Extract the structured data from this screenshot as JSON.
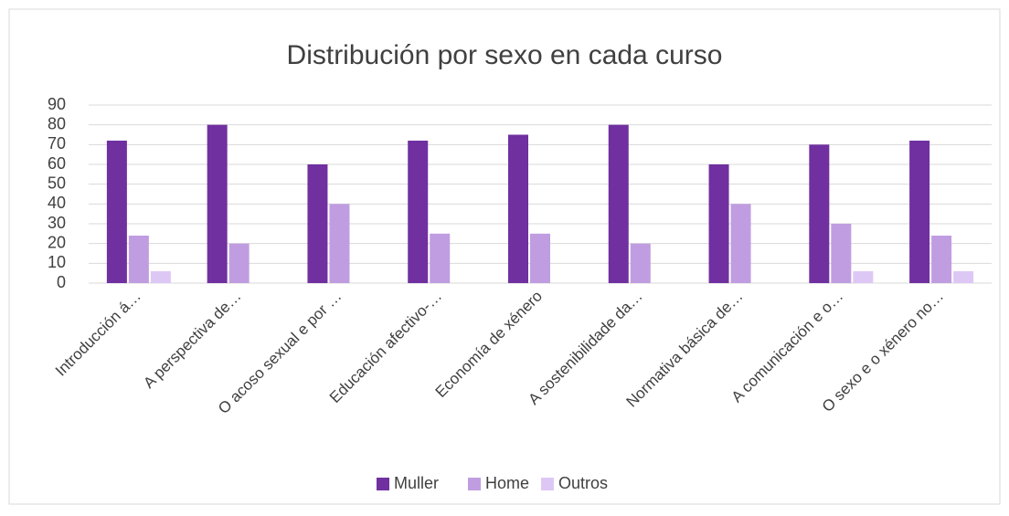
{
  "chart_data": {
    "type": "bar",
    "title": "Distribución por sexo en cada curso",
    "categories": [
      "Introducción á…",
      "A perspectiva de…",
      "O acoso sexual e por …",
      "Educación afectivo-…",
      "Economía de xénero",
      "A sostenibilidade da…",
      "Normativa básica de…",
      "A comunicación e o…",
      "O sexo e o xénero no…"
    ],
    "series": [
      {
        "name": "Muller",
        "color": "#7030a0",
        "values": [
          72,
          80,
          60,
          72,
          75,
          80,
          60,
          70,
          72
        ]
      },
      {
        "name": "Home",
        "color": "#c09de0",
        "values": [
          24,
          20,
          40,
          25,
          25,
          20,
          40,
          30,
          24
        ]
      },
      {
        "name": "Outros",
        "color": "#ddc8f5",
        "values": [
          6,
          0,
          0,
          0,
          0,
          0,
          0,
          6,
          6
        ]
      }
    ],
    "ylim": [
      0,
      90
    ],
    "yticks": [
      0,
      10,
      20,
      30,
      40,
      50,
      60,
      70,
      80,
      90
    ],
    "grid": true,
    "legend": "bottom"
  }
}
